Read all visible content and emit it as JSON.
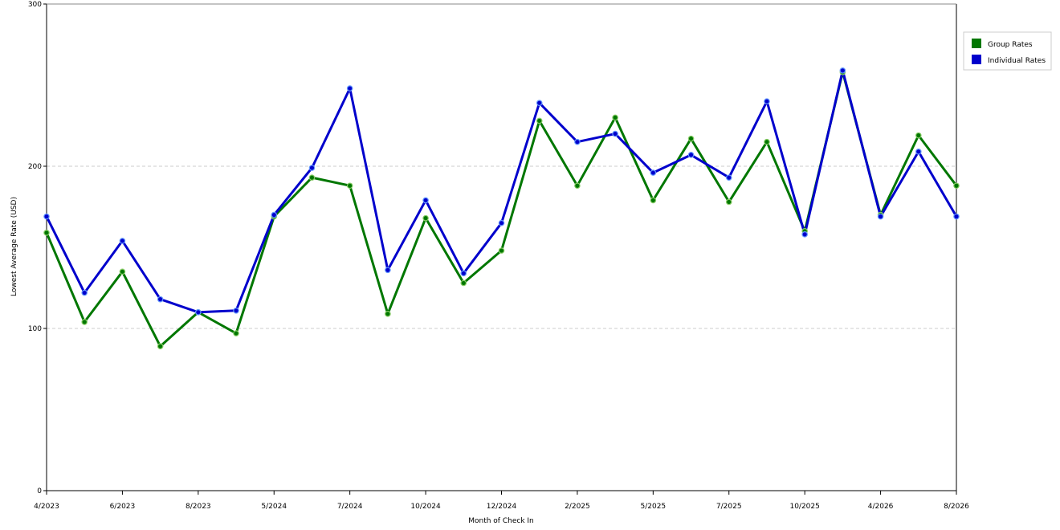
{
  "chart_data": {
    "type": "line",
    "title": "",
    "xlabel": "Month of Check In",
    "ylabel": "Lowest Average Rate (USD)",
    "ylim": [
      0,
      300
    ],
    "yticks": [
      0,
      100,
      200,
      300
    ],
    "grid": true,
    "legend_position": "top-right",
    "x_tick_labels": [
      "4/2023",
      "6/2023",
      "8/2023",
      "5/2024",
      "7/2024",
      "10/2024",
      "12/2024",
      "2/2025",
      "5/2025",
      "7/2025",
      "10/2025",
      "4/2026",
      "8/2026"
    ],
    "series": [
      {
        "name": "Group Rates",
        "color": "#007700",
        "values": [
          159,
          104,
          135,
          89,
          110,
          97,
          169,
          193,
          188,
          109,
          168,
          128,
          148,
          228,
          188,
          230,
          179,
          217,
          178,
          215,
          160,
          258,
          170,
          219,
          188
        ]
      },
      {
        "name": "Individual Rates",
        "color": "#0000cc",
        "values": [
          169,
          122,
          154,
          118,
          110,
          111,
          170,
          199,
          248,
          136,
          179,
          134,
          165,
          239,
          215,
          220,
          196,
          207,
          193,
          240,
          158,
          259,
          169,
          209,
          169
        ]
      }
    ]
  }
}
